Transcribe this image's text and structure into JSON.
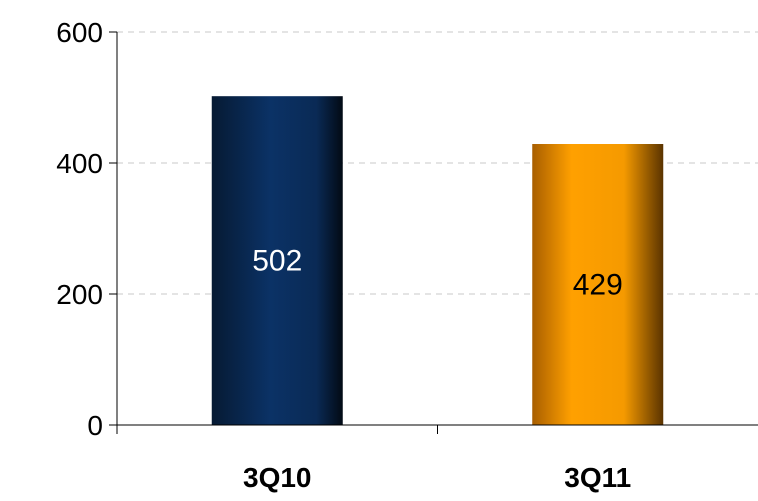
{
  "chart_data": {
    "type": "bar",
    "categories": [
      "3Q10",
      "3Q11"
    ],
    "values": [
      502,
      429
    ],
    "data_labels": [
      "502",
      "429"
    ],
    "ylim": [
      0,
      600
    ],
    "yticks": [
      0,
      200,
      400,
      600
    ],
    "ytick_labels": [
      "0",
      "200",
      "400",
      "600"
    ],
    "grid": true,
    "legend": "none",
    "bar_colors": [
      "#0a2a55",
      "#f59a00"
    ],
    "label_colors": [
      "#ffffff",
      "#000000"
    ]
  }
}
